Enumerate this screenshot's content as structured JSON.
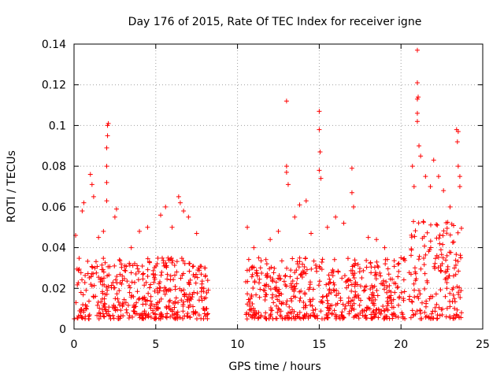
{
  "chart_data": {
    "type": "scatter",
    "title": "Day 176 of 2015, Rate Of TEC Index for receiver igne",
    "xlabel": "GPS time / hours",
    "ylabel": "ROTI / TECUs",
    "xlim": [
      0,
      25
    ],
    "ylim": [
      0,
      0.14
    ],
    "x_ticks": [
      0,
      5,
      10,
      15,
      20,
      25
    ],
    "x_tick_labels": [
      "0",
      "5",
      "10",
      "15",
      "20",
      "25"
    ],
    "y_ticks": [
      0,
      0.02,
      0.04,
      0.06,
      0.08,
      0.1,
      0.12,
      0.14
    ],
    "y_tick_labels": [
      "0",
      "0.02",
      "0.04",
      "0.06",
      "0.08",
      "0.1",
      "0.12",
      "0.14"
    ],
    "grid": true,
    "legend": "none",
    "marker": "+",
    "series": [
      {
        "name": "ROTI",
        "color": "#ff0000",
        "coverage": [
          [
            0.0,
            8.25
          ],
          [
            10.5,
            20.25
          ],
          [
            20.4,
            23.7
          ]
        ],
        "typical_range": [
          0.005,
          0.035
        ],
        "peaks": [
          {
            "x": 0.1,
            "y": 0.046
          },
          {
            "x": 0.5,
            "y": 0.058
          },
          {
            "x": 0.6,
            "y": 0.062
          },
          {
            "x": 1.0,
            "y": 0.076
          },
          {
            "x": 1.1,
            "y": 0.071
          },
          {
            "x": 1.2,
            "y": 0.065
          },
          {
            "x": 1.5,
            "y": 0.045
          },
          {
            "x": 1.8,
            "y": 0.048
          },
          {
            "x": 2.0,
            "y": 0.08
          },
          {
            "x": 2.0,
            "y": 0.089
          },
          {
            "x": 2.05,
            "y": 0.1
          },
          {
            "x": 2.1,
            "y": 0.101
          },
          {
            "x": 2.05,
            "y": 0.095
          },
          {
            "x": 2.0,
            "y": 0.072
          },
          {
            "x": 2.0,
            "y": 0.063
          },
          {
            "x": 2.5,
            "y": 0.055
          },
          {
            "x": 2.6,
            "y": 0.059
          },
          {
            "x": 3.5,
            "y": 0.04
          },
          {
            "x": 4.0,
            "y": 0.048
          },
          {
            "x": 4.5,
            "y": 0.05
          },
          {
            "x": 5.3,
            "y": 0.056
          },
          {
            "x": 5.6,
            "y": 0.06
          },
          {
            "x": 6.0,
            "y": 0.05
          },
          {
            "x": 6.4,
            "y": 0.065
          },
          {
            "x": 6.5,
            "y": 0.062
          },
          {
            "x": 6.7,
            "y": 0.058
          },
          {
            "x": 7.0,
            "y": 0.055
          },
          {
            "x": 7.5,
            "y": 0.047
          },
          {
            "x": 8.0,
            "y": 0.03
          },
          {
            "x": 10.6,
            "y": 0.05
          },
          {
            "x": 11.0,
            "y": 0.04
          },
          {
            "x": 12.0,
            "y": 0.044
          },
          {
            "x": 12.5,
            "y": 0.048
          },
          {
            "x": 13.0,
            "y": 0.08
          },
          {
            "x": 13.0,
            "y": 0.077
          },
          {
            "x": 13.1,
            "y": 0.071
          },
          {
            "x": 13.0,
            "y": 0.112
          },
          {
            "x": 13.5,
            "y": 0.055
          },
          {
            "x": 13.8,
            "y": 0.061
          },
          {
            "x": 14.2,
            "y": 0.063
          },
          {
            "x": 14.5,
            "y": 0.047
          },
          {
            "x": 15.0,
            "y": 0.107
          },
          {
            "x": 15.0,
            "y": 0.098
          },
          {
            "x": 15.05,
            "y": 0.087
          },
          {
            "x": 15.1,
            "y": 0.074
          },
          {
            "x": 15.0,
            "y": 0.078
          },
          {
            "x": 15.5,
            "y": 0.05
          },
          {
            "x": 16.0,
            "y": 0.055
          },
          {
            "x": 16.5,
            "y": 0.052
          },
          {
            "x": 17.0,
            "y": 0.079
          },
          {
            "x": 17.0,
            "y": 0.067
          },
          {
            "x": 17.1,
            "y": 0.06
          },
          {
            "x": 18.0,
            "y": 0.045
          },
          {
            "x": 18.5,
            "y": 0.044
          },
          {
            "x": 19.0,
            "y": 0.04
          },
          {
            "x": 20.0,
            "y": 0.035
          },
          {
            "x": 20.7,
            "y": 0.08
          },
          {
            "x": 20.8,
            "y": 0.07
          },
          {
            "x": 21.0,
            "y": 0.137
          },
          {
            "x": 21.0,
            "y": 0.121
          },
          {
            "x": 21.05,
            "y": 0.114
          },
          {
            "x": 21.0,
            "y": 0.113
          },
          {
            "x": 21.0,
            "y": 0.106
          },
          {
            "x": 21.0,
            "y": 0.102
          },
          {
            "x": 21.1,
            "y": 0.09
          },
          {
            "x": 21.2,
            "y": 0.085
          },
          {
            "x": 21.5,
            "y": 0.075
          },
          {
            "x": 21.8,
            "y": 0.07
          },
          {
            "x": 22.0,
            "y": 0.083
          },
          {
            "x": 22.3,
            "y": 0.075
          },
          {
            "x": 22.6,
            "y": 0.068
          },
          {
            "x": 23.0,
            "y": 0.06
          },
          {
            "x": 23.4,
            "y": 0.098
          },
          {
            "x": 23.5,
            "y": 0.097
          },
          {
            "x": 23.45,
            "y": 0.092
          },
          {
            "x": 23.5,
            "y": 0.08
          },
          {
            "x": 23.6,
            "y": 0.075
          },
          {
            "x": 23.6,
            "y": 0.07
          }
        ]
      }
    ]
  }
}
